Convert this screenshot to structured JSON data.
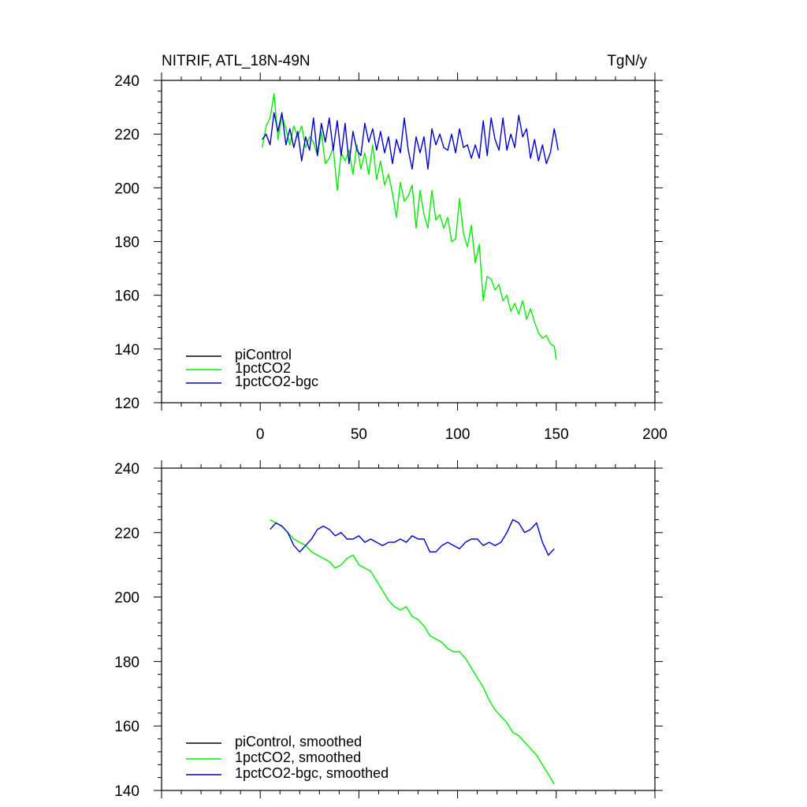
{
  "colors": {
    "piControl": "#000000",
    "1pctCO2": "#00ee00",
    "1pctCO2-bgc": "#0000cc"
  },
  "chart_data": [
    {
      "type": "line",
      "title": "NITRIF, ATL_18N-49N",
      "units": "TgN/y",
      "xlim": [
        -50,
        200
      ],
      "ylim": [
        120,
        240
      ],
      "xticks": [
        0,
        50,
        100,
        150,
        200
      ],
      "yticks": [
        120,
        140,
        160,
        180,
        200,
        220,
        240
      ],
      "legend": "bottom-left",
      "series": [
        {
          "name": "piControl",
          "color": "#000000",
          "x": [],
          "y": []
        },
        {
          "name": "1pctCO2",
          "color": "#00ee00",
          "x": [
            1,
            3,
            5,
            7,
            9,
            11,
            13,
            15,
            17,
            19,
            21,
            23,
            25,
            27,
            29,
            31,
            33,
            35,
            37,
            39,
            41,
            43,
            45,
            47,
            49,
            51,
            53,
            55,
            57,
            59,
            61,
            63,
            65,
            67,
            69,
            71,
            73,
            75,
            77,
            79,
            81,
            83,
            85,
            87,
            89,
            91,
            93,
            95,
            97,
            99,
            101,
            103,
            105,
            107,
            109,
            111,
            113,
            115,
            117,
            119,
            121,
            123,
            125,
            127,
            129,
            131,
            133,
            135,
            137,
            139,
            141,
            143,
            145,
            147,
            149,
            150
          ],
          "y": [
            215,
            223,
            226,
            235,
            218,
            227,
            222,
            216,
            223,
            219,
            223,
            215,
            219,
            217,
            212,
            221,
            209,
            211,
            215,
            199,
            213,
            210,
            214,
            205,
            216,
            207,
            213,
            205,
            216,
            203,
            210,
            201,
            205,
            198,
            189,
            202,
            195,
            197,
            201,
            185,
            199,
            190,
            185,
            199,
            188,
            190,
            185,
            189,
            180,
            181,
            196,
            183,
            178,
            186,
            172,
            179,
            158,
            167,
            166,
            162,
            164,
            158,
            160,
            154,
            157,
            153,
            158,
            151,
            155,
            150,
            146,
            144,
            145,
            142,
            141,
            136
          ]
        },
        {
          "name": "1pctCO2-bgc",
          "color": "#0000cc",
          "x": [
            1,
            3,
            5,
            7,
            9,
            11,
            13,
            15,
            17,
            19,
            21,
            23,
            25,
            27,
            29,
            31,
            33,
            35,
            37,
            39,
            41,
            43,
            45,
            47,
            49,
            51,
            53,
            55,
            57,
            59,
            61,
            63,
            65,
            67,
            69,
            71,
            73,
            75,
            77,
            79,
            81,
            83,
            85,
            87,
            89,
            91,
            93,
            95,
            97,
            99,
            101,
            103,
            105,
            107,
            109,
            111,
            113,
            115,
            117,
            119,
            121,
            123,
            125,
            127,
            129,
            131,
            133,
            135,
            137,
            139,
            141,
            143,
            145,
            147,
            149,
            151
          ],
          "y": [
            218,
            220,
            216,
            228,
            221,
            228,
            216,
            222,
            215,
            221,
            210,
            219,
            214,
            226,
            212,
            224,
            217,
            226,
            214,
            225,
            212,
            224,
            209,
            221,
            214,
            212,
            224,
            217,
            222,
            214,
            221,
            213,
            219,
            209,
            218,
            213,
            226,
            214,
            207,
            219,
            213,
            219,
            207,
            222,
            216,
            220,
            215,
            214,
            220,
            213,
            222,
            215,
            216,
            211,
            216,
            211,
            225,
            212,
            226,
            218,
            214,
            226,
            214,
            220,
            215,
            227,
            219,
            222,
            211,
            218,
            210,
            216,
            209,
            213,
            222,
            214
          ]
        }
      ]
    },
    {
      "type": "line",
      "title": "",
      "units": "",
      "xlim": [
        -50,
        200
      ],
      "ylim": [
        140,
        240
      ],
      "xticks": [
        0,
        50,
        100,
        150,
        200
      ],
      "yticks": [
        140,
        160,
        180,
        200,
        220,
        240
      ],
      "legend": "bottom-left",
      "series": [
        {
          "name": "piControl, smoothed",
          "color": "#000000",
          "x": [],
          "y": []
        },
        {
          "name": "1pctCO2, smoothed",
          "color": "#00ee00",
          "x": [
            5,
            8,
            11,
            14,
            17,
            20,
            23,
            26,
            29,
            32,
            35,
            38,
            41,
            44,
            47,
            50,
            53,
            56,
            59,
            62,
            65,
            68,
            71,
            74,
            77,
            80,
            83,
            86,
            89,
            92,
            95,
            98,
            101,
            104,
            107,
            110,
            113,
            116,
            119,
            122,
            125,
            128,
            131,
            134,
            137,
            140,
            143,
            146,
            149
          ],
          "y": [
            224,
            223,
            222,
            220,
            218,
            217,
            216,
            214,
            213,
            212,
            211,
            209,
            210,
            212,
            213,
            210,
            209,
            208,
            205,
            202,
            199,
            197,
            196,
            197,
            194,
            193,
            191,
            188,
            187,
            186,
            184,
            183,
            183,
            181,
            178,
            175,
            172,
            168,
            165,
            163,
            161,
            158,
            157,
            155,
            153,
            151,
            148,
            145,
            142
          ]
        },
        {
          "name": "1pctCO2-bgc, smoothed",
          "color": "#0000cc",
          "x": [
            5,
            8,
            11,
            14,
            17,
            20,
            23,
            26,
            29,
            32,
            35,
            38,
            41,
            44,
            47,
            50,
            53,
            56,
            59,
            62,
            65,
            68,
            71,
            74,
            77,
            80,
            83,
            86,
            89,
            92,
            95,
            98,
            101,
            104,
            107,
            110,
            113,
            116,
            119,
            122,
            125,
            128,
            131,
            134,
            137,
            140,
            143,
            146,
            149
          ],
          "y": [
            221,
            223,
            222,
            220,
            216,
            214,
            216,
            218,
            221,
            222,
            221,
            219,
            220,
            218,
            218,
            219,
            217,
            218,
            217,
            216,
            217,
            217,
            218,
            217,
            219,
            218,
            218,
            214,
            214,
            216,
            217,
            216,
            215,
            217,
            218,
            218,
            216,
            217,
            216,
            217,
            220,
            224,
            223,
            220,
            221,
            223,
            217,
            213,
            215
          ]
        }
      ]
    }
  ]
}
